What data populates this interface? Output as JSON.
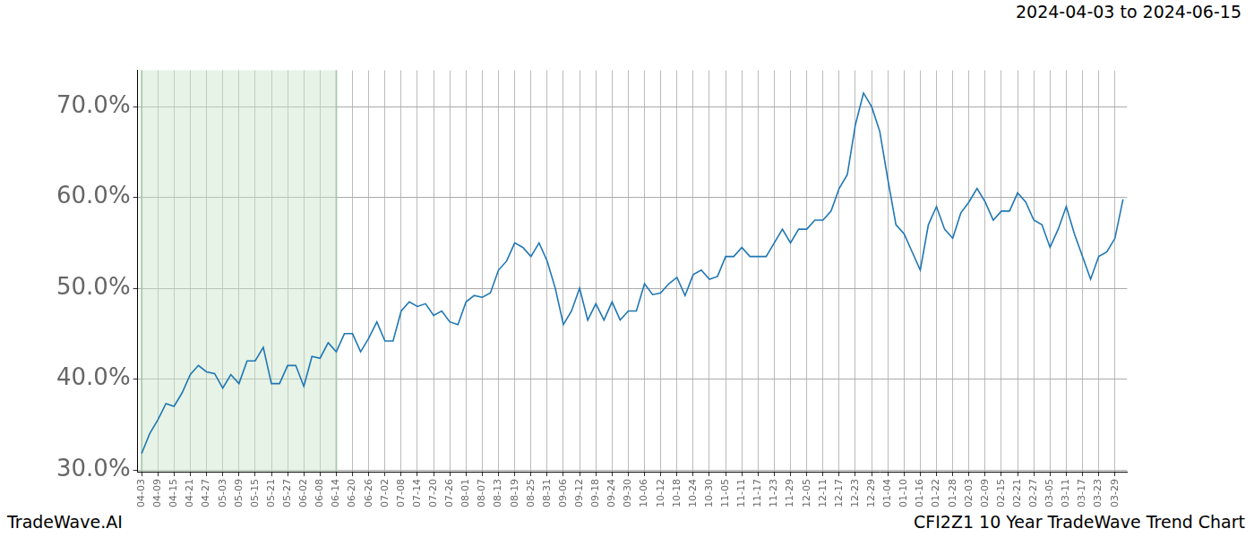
{
  "chart_data": {
    "type": "line",
    "title": "2024-04-03 to 2024-06-15",
    "footer": [
      "TradeWave.AI",
      "CFI2Z1 10 Year TradeWave Trend Chart"
    ],
    "categories": [
      "04-03",
      null,
      "04-09",
      null,
      "04-15",
      null,
      "04-21",
      null,
      "04-27",
      null,
      "05-03",
      null,
      "05-09",
      null,
      "05-15",
      null,
      "05-21",
      null,
      "05-27",
      null,
      "06-02",
      null,
      "06-08",
      null,
      "06-14",
      null,
      "06-20",
      null,
      "06-26",
      null,
      "07-02",
      null,
      "07-08",
      null,
      "07-14",
      null,
      "07-20",
      null,
      "07-26",
      null,
      "08-01",
      null,
      "08-07",
      null,
      "08-13",
      null,
      "08-19",
      null,
      "08-25",
      null,
      "08-31",
      null,
      "09-06",
      null,
      "09-12",
      null,
      "09-18",
      null,
      "09-24",
      null,
      "09-30",
      null,
      "10-06",
      null,
      "10-12",
      null,
      "10-18",
      null,
      "10-24",
      null,
      "10-30",
      null,
      "11-05",
      null,
      "11-11",
      null,
      "11-17",
      null,
      "11-23",
      null,
      "11-29",
      null,
      "12-05",
      null,
      "12-11",
      null,
      "12-17",
      null,
      "12-23",
      null,
      "12-29",
      null,
      "01-04",
      null,
      "01-10",
      null,
      "01-16",
      null,
      "01-22",
      null,
      "01-28",
      null,
      "02-03",
      null,
      "02-09",
      null,
      "02-15",
      null,
      "02-21",
      null,
      "02-27",
      null,
      "03-05",
      null,
      "03-11",
      null,
      "03-17",
      null,
      "03-23",
      null,
      "03-29",
      null
    ],
    "values": [
      31.8,
      34,
      35.5,
      37.3,
      37,
      38.5,
      40.5,
      41.5,
      40.8,
      40.6,
      39,
      40.5,
      39.5,
      42,
      42,
      43.5,
      39.5,
      39.5,
      41.5,
      41.5,
      39.2,
      42.5,
      42.3,
      44,
      43,
      45,
      45,
      43,
      44.5,
      46.3,
      44.2,
      44.2,
      47.5,
      48.5,
      48,
      48.3,
      47,
      47.5,
      46.3,
      46,
      48.5,
      49.2,
      49,
      49.5,
      52,
      53,
      55,
      54.5,
      53.5,
      55,
      53,
      50,
      46,
      47.5,
      50,
      46.5,
      48.3,
      46.5,
      48.5,
      46.5,
      47.5,
      47.5,
      50.5,
      49.3,
      49.5,
      50.5,
      51.2,
      49.2,
      51.5,
      52,
      51,
      51.3,
      53.5,
      53.5,
      54.5,
      53.5,
      53.5,
      53.5,
      55,
      56.5,
      55,
      56.5,
      56.5,
      57.5,
      57.5,
      58.5,
      61,
      62.5,
      68,
      71.5,
      70,
      67.3,
      62,
      57,
      56,
      54,
      52,
      57,
      59,
      56.5,
      55.5,
      58.3,
      59.5,
      61,
      59.5,
      57.5,
      58.5,
      58.5,
      60.5,
      59.5,
      57.5,
      57,
      54.5,
      56.5,
      59,
      56,
      53.5,
      51,
      53.5,
      54,
      55.5,
      59.8
    ],
    "color": "#1f77b4",
    "highlight": {
      "start": "04-03",
      "end": "06-14"
    },
    "ylim": [
      29.8,
      74
    ],
    "yticks": [
      {
        "value": 30,
        "label": "30.0%"
      },
      {
        "value": 40,
        "label": "40.0%"
      },
      {
        "value": 50,
        "label": "50.0%"
      },
      {
        "value": 60,
        "label": "60.0%"
      },
      {
        "value": 70,
        "label": "70.0%"
      }
    ],
    "grid": true
  }
}
